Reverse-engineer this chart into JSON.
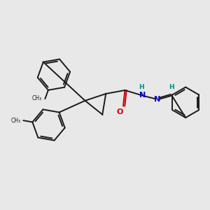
{
  "background_color": "#e8e8e8",
  "bond_color": "#1a1a1a",
  "N_color": "#0000cc",
  "O_color": "#cc0000",
  "H_color": "#008888",
  "figsize": [
    3.0,
    3.0
  ],
  "dpi": 100,
  "xlim": [
    0,
    12
  ],
  "ylim": [
    0,
    12
  ]
}
